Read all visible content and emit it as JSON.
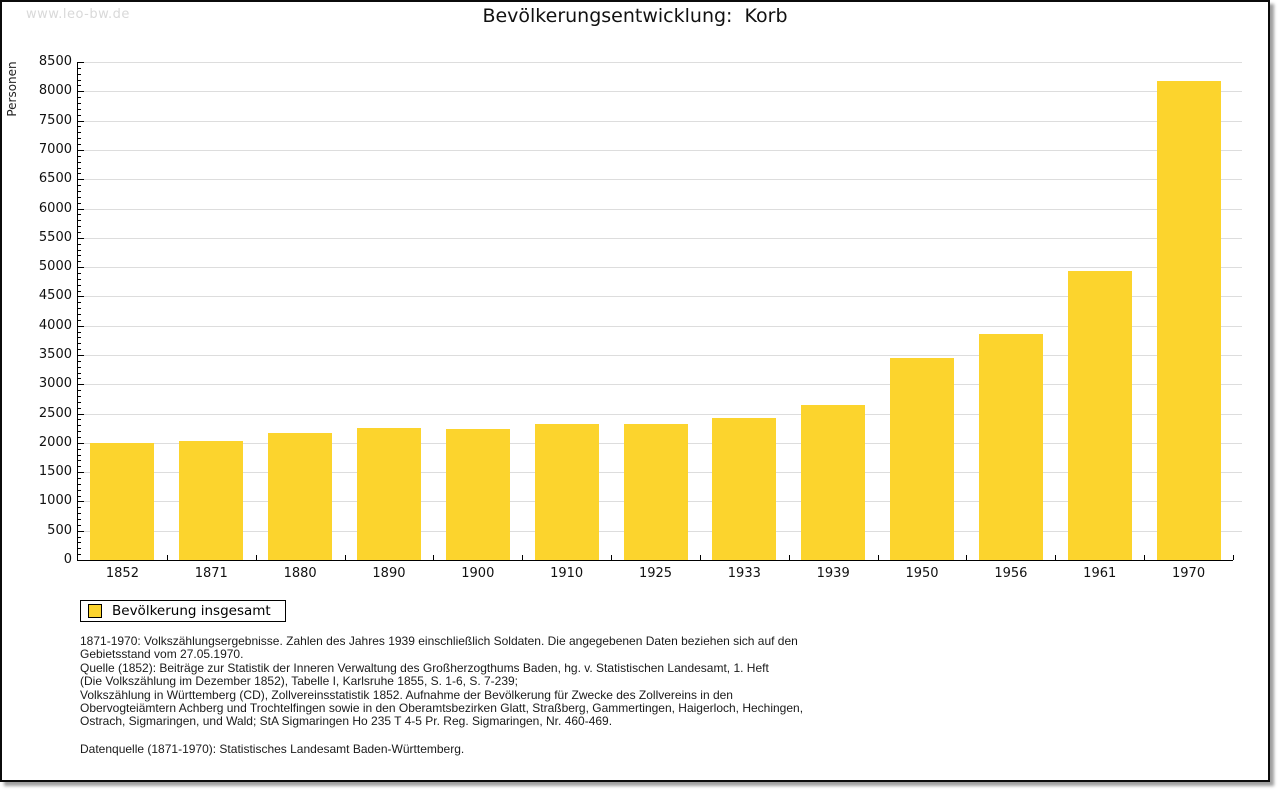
{
  "watermark": "www.leo-bw.de",
  "chart_data": {
    "type": "bar",
    "title": "Bevölkerungsentwicklung:  Korb",
    "ylabel": "Personen",
    "xlabel": "",
    "categories": [
      "1852",
      "1871",
      "1880",
      "1890",
      "1900",
      "1910",
      "1925",
      "1933",
      "1939",
      "1950",
      "1956",
      "1961",
      "1970"
    ],
    "values": [
      2000,
      2040,
      2160,
      2250,
      2240,
      2330,
      2320,
      2430,
      2650,
      3450,
      3850,
      4930,
      8180
    ],
    "series": [
      {
        "name": "Bevölkerung insgesamt",
        "values": [
          2000,
          2040,
          2160,
          2250,
          2240,
          2330,
          2320,
          2430,
          2650,
          3450,
          3850,
          4930,
          8180
        ]
      }
    ],
    "ylim": [
      0,
      8500
    ],
    "ytick_major": 500,
    "ytick_minor": 100,
    "grid": true,
    "legend_position": "bottom-left",
    "bar_color": "#FCD42D",
    "grid_color": "#DDDDDD"
  },
  "legend": {
    "label": "Bevölkerung insgesamt"
  },
  "footnotes": {
    "notes": "1871-1970: Volkszählungsergebnisse. Zahlen des Jahres 1939 einschließlich Soldaten. Die angegebenen Daten beziehen sich auf den\nGebietsstand vom 27.05.1970.\nQuelle (1852): Beiträge zur Statistik der Inneren Verwaltung des Großherzogthums Baden, hg. v. Statistischen Landesamt, 1. Heft\n(Die Volkszählung im Dezember 1852), Tabelle I, Karlsruhe 1855, S. 1-6, S. 7-239;\nVolkszählung in Württemberg (CD), Zollvereinsstatistik 1852. Aufnahme der Bevölkerung für Zwecke des Zollvereins in den\nObervogteiämtern Achberg und Trochtelfingen sowie in den Oberamtsbezirken Glatt, Straßberg, Gammertingen, Haigerloch, Hechingen,\nOstrach, Sigmaringen, und Wald; StA Sigmaringen Ho 235 T 4-5 Pr. Reg. Sigmaringen, Nr. 460-469.",
    "datasource": "Datenquelle (1871-1970): Statistisches Landesamt Baden-Württemberg."
  }
}
